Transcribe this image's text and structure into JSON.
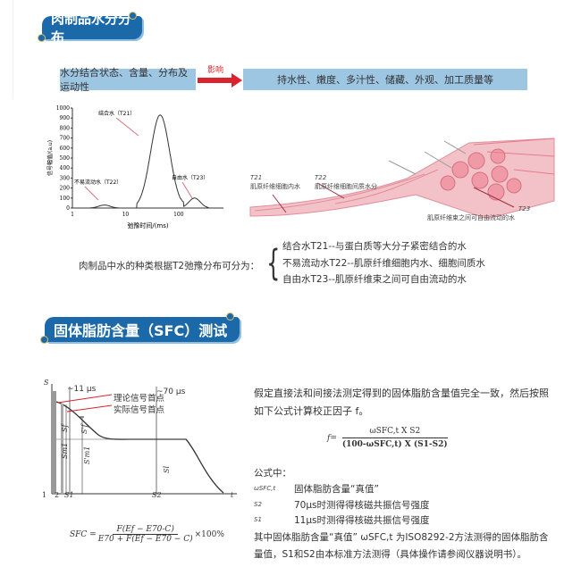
{
  "section1": {
    "title": "肉制品水分分布",
    "left_box": "水分结合状态、含量、分布及运动性",
    "arrow_label": "影响",
    "right_box": "持水性、嫩度、多汁性、储藏、外观、加工质量等"
  },
  "chart_data": {
    "type": "line",
    "xlabel": "弛豫时间/(ms)",
    "ylabel": "信号幅值/(a.u)",
    "xscale": "log",
    "xlim": [
      1,
      700
    ],
    "ylim": [
      0,
      1000
    ],
    "xticks": [
      "1",
      "10",
      "100"
    ],
    "yticks": [
      "0",
      "100",
      "200",
      "300",
      "400",
      "500",
      "600",
      "700",
      "800",
      "900",
      "1000"
    ],
    "peaks": [
      {
        "label": "结合水（T21）",
        "center_ms": 4,
        "height": 30
      },
      {
        "label": "不易流动水（T22）",
        "center_ms": 45,
        "height": 930
      },
      {
        "label": "自由水（T23）",
        "center_ms": 200,
        "height": 100
      }
    ]
  },
  "illustration": {
    "labels": [
      {
        "sym": "T21",
        "text": "肌原纤维细胞内水"
      },
      {
        "sym": "T22",
        "text": "肌原纤维细胞间质水分"
      },
      {
        "sym": "T23",
        "text": "肌原纤维束之间可自由流动的水"
      }
    ]
  },
  "classification": {
    "intro": "肉制品中水的种类根据T2弛豫分布可分为：",
    "items": [
      "结合水T21--与蛋白质等大分子紧密结合的水",
      "不易流动水T22--肌原纤维细胞内水、细胞间质水",
      "自由水T23--肌原纤维束之间可自由流动的水"
    ]
  },
  "section2": {
    "title": "固体脂肪含量（SFC）测试"
  },
  "fid_diagram": {
    "y_axis": "S",
    "x_axis": "t",
    "t11": "~11 μs",
    "t70": "~70 μs",
    "legend1": "理论信号首点",
    "legend2": "实际信号首点",
    "labels": [
      "Sf",
      "S'f",
      "Sm1",
      "S'm1",
      "Sl",
      "1",
      "2",
      "S1",
      "S2"
    ]
  },
  "text": {
    "para1": "假定直接法和间接法测定得到的固体脂肪含量值完全一致，然后按照",
    "para1b": "如下公式计算校正因子 f。",
    "formula_f_lhs": "f=",
    "formula_f_num": "ωSFC,t X S2",
    "formula_f_den": "(100-ωSFC,t) X (S1-S2)",
    "where": "公式中：",
    "defs": [
      {
        "sym": "ωSFC,t",
        "desc": "固体脂肪含量“真值”"
      },
      {
        "sym": "S2",
        "desc": "70μs时测得得核磁共振信号强度"
      },
      {
        "sym": "S1",
        "desc": "11μs时测得得核磁共振信号强度"
      }
    ],
    "para2": "其中固体脂肪含量“真值” ωSFC,t 为ISO8292-2方法测得的固体脂肪含",
    "para2b": "量值，S1和S2由本标准方法测得（具体操作请参阅仪器说明书）。",
    "sfc_lhs": "SFC =",
    "sfc_num": "F(Ef − E70-C)",
    "sfc_den": "E70 + F(Ef − E70 − C)",
    "sfc_tail": "×100%"
  },
  "colors": {
    "banner": "#1b69a8",
    "box": "#9dc6e3",
    "arrow": "#d9232e",
    "muscle": "#eb8f9a"
  }
}
